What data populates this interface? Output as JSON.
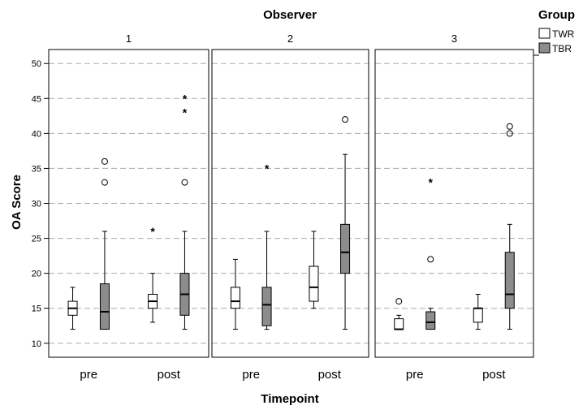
{
  "chart_data": {
    "type": "boxplot",
    "title": "Observer",
    "xlabel": "Timepoint",
    "ylabel": "OA Score",
    "ylim": [
      8,
      52
    ],
    "yticks": [
      10,
      15,
      20,
      25,
      30,
      35,
      40,
      45,
      50
    ],
    "grid": true,
    "legend": {
      "title": "Group",
      "position": "top-right",
      "items": [
        {
          "name": "TWR",
          "color": "#ffffff"
        },
        {
          "name": "TBR",
          "color": "#8c8c8c"
        }
      ]
    },
    "categories": [
      "pre",
      "post"
    ],
    "panels": [
      {
        "label": "1",
        "boxes": [
          {
            "timepoint": "pre",
            "group": "TWR",
            "whisker_low": 12,
            "q1": 14,
            "median": 15,
            "q3": 16,
            "whisker_high": 18,
            "outliers": [],
            "extremes": []
          },
          {
            "timepoint": "pre",
            "group": "TBR",
            "whisker_low": 12,
            "q1": 12,
            "median": 14.5,
            "q3": 18.5,
            "whisker_high": 26,
            "outliers": [
              33,
              36
            ],
            "extremes": []
          },
          {
            "timepoint": "post",
            "group": "TWR",
            "whisker_low": 13,
            "q1": 15,
            "median": 16,
            "q3": 17,
            "whisker_high": 20,
            "outliers": [],
            "extremes": [
              26
            ]
          },
          {
            "timepoint": "post",
            "group": "TBR",
            "whisker_low": 12,
            "q1": 14,
            "median": 17,
            "q3": 20,
            "whisker_high": 26,
            "outliers": [
              33
            ],
            "extremes": [
              43,
              45
            ]
          }
        ]
      },
      {
        "label": "2",
        "boxes": [
          {
            "timepoint": "pre",
            "group": "TWR",
            "whisker_low": 12,
            "q1": 15,
            "median": 16,
            "q3": 18,
            "whisker_high": 22,
            "outliers": [],
            "extremes": []
          },
          {
            "timepoint": "pre",
            "group": "TBR",
            "whisker_low": 12,
            "q1": 12.5,
            "median": 15.5,
            "q3": 18,
            "whisker_high": 26,
            "outliers": [],
            "extremes": [
              35
            ]
          },
          {
            "timepoint": "post",
            "group": "TWR",
            "whisker_low": 15,
            "q1": 16,
            "median": 18,
            "q3": 21,
            "whisker_high": 26,
            "outliers": [],
            "extremes": []
          },
          {
            "timepoint": "post",
            "group": "TBR",
            "whisker_low": 12,
            "q1": 20,
            "median": 23,
            "q3": 27,
            "whisker_high": 37,
            "outliers": [
              42
            ],
            "extremes": []
          }
        ]
      },
      {
        "label": "3",
        "boxes": [
          {
            "timepoint": "pre",
            "group": "TWR",
            "whisker_low": 12,
            "q1": 12,
            "median": 12,
            "q3": 13.5,
            "whisker_high": 14,
            "outliers": [
              16
            ],
            "extremes": []
          },
          {
            "timepoint": "pre",
            "group": "TBR",
            "whisker_low": 12,
            "q1": 12,
            "median": 13,
            "q3": 14.5,
            "whisker_high": 15,
            "outliers": [
              22
            ],
            "extremes": [
              33
            ]
          },
          {
            "timepoint": "post",
            "group": "TWR",
            "whisker_low": 12,
            "q1": 13,
            "median": 15,
            "q3": 15,
            "whisker_high": 17,
            "outliers": [],
            "extremes": []
          },
          {
            "timepoint": "post",
            "group": "TBR",
            "whisker_low": 12,
            "q1": 15,
            "median": 17,
            "q3": 23,
            "whisker_high": 27,
            "outliers": [
              40,
              41
            ],
            "extremes": []
          }
        ]
      }
    ]
  }
}
